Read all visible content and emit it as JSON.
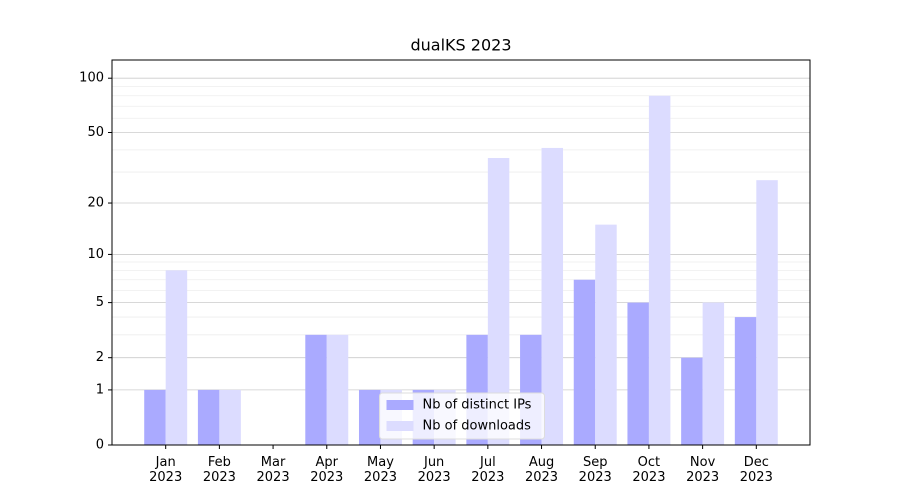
{
  "chart_data": {
    "type": "bar",
    "title": "dualKS 2023",
    "categories": [
      "Jan 2023",
      "Feb 2023",
      "Mar 2023",
      "Apr 2023",
      "May 2023",
      "Jun 2023",
      "Jul 2023",
      "Aug 2023",
      "Sep 2023",
      "Oct 2023",
      "Nov 2023",
      "Dec 2023"
    ],
    "series": [
      {
        "name": "Nb of distinct IPs",
        "color": "#aaaaff",
        "values": [
          1,
          1,
          0,
          3,
          1,
          1,
          3,
          3,
          7,
          5,
          2,
          4
        ]
      },
      {
        "name": "Nb of downloads",
        "color": "#dcdcff",
        "values": [
          8,
          1,
          0,
          3,
          1,
          1,
          36,
          41,
          15,
          80,
          5,
          27
        ]
      }
    ],
    "yscale": "log1p",
    "ylim": [
      0,
      126
    ],
    "yticks": [
      0,
      1,
      2,
      5,
      10,
      20,
      50,
      100
    ],
    "minor_yticks": [
      3,
      4,
      6,
      7,
      8,
      9,
      30,
      40,
      60,
      70,
      80,
      90
    ],
    "grid": true,
    "legend": "lower center"
  }
}
